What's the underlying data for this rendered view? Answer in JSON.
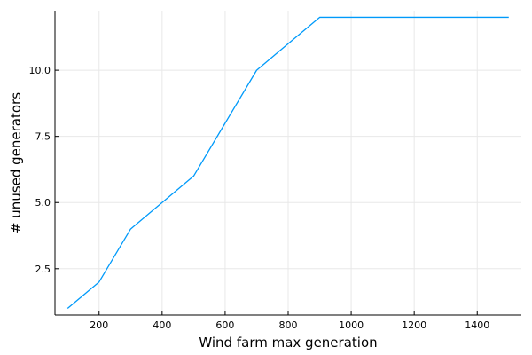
{
  "chart_data": {
    "type": "line",
    "xlabel": "Wind farm max generation",
    "ylabel": "# unused generators",
    "xlim": [
      60,
      1540
    ],
    "ylim": [
      0.75,
      12.25
    ],
    "xticks": [
      200,
      400,
      600,
      800,
      1000,
      1200,
      1400
    ],
    "yticks": [
      2.5,
      5.0,
      7.5,
      10.0
    ],
    "ytick_labels": [
      "2.5",
      "5.0",
      "7.5",
      "10.0"
    ],
    "grid": true,
    "legend": "none",
    "series": [
      {
        "color": "#009AFA",
        "x": [
          100,
          200,
          300,
          400,
          500,
          600,
          700,
          800,
          900,
          1000,
          1100,
          1200,
          1300,
          1400,
          1500
        ],
        "y": [
          1,
          2,
          4,
          5,
          6,
          8,
          10,
          11,
          12,
          12,
          12,
          12,
          12,
          12,
          12
        ]
      }
    ]
  }
}
